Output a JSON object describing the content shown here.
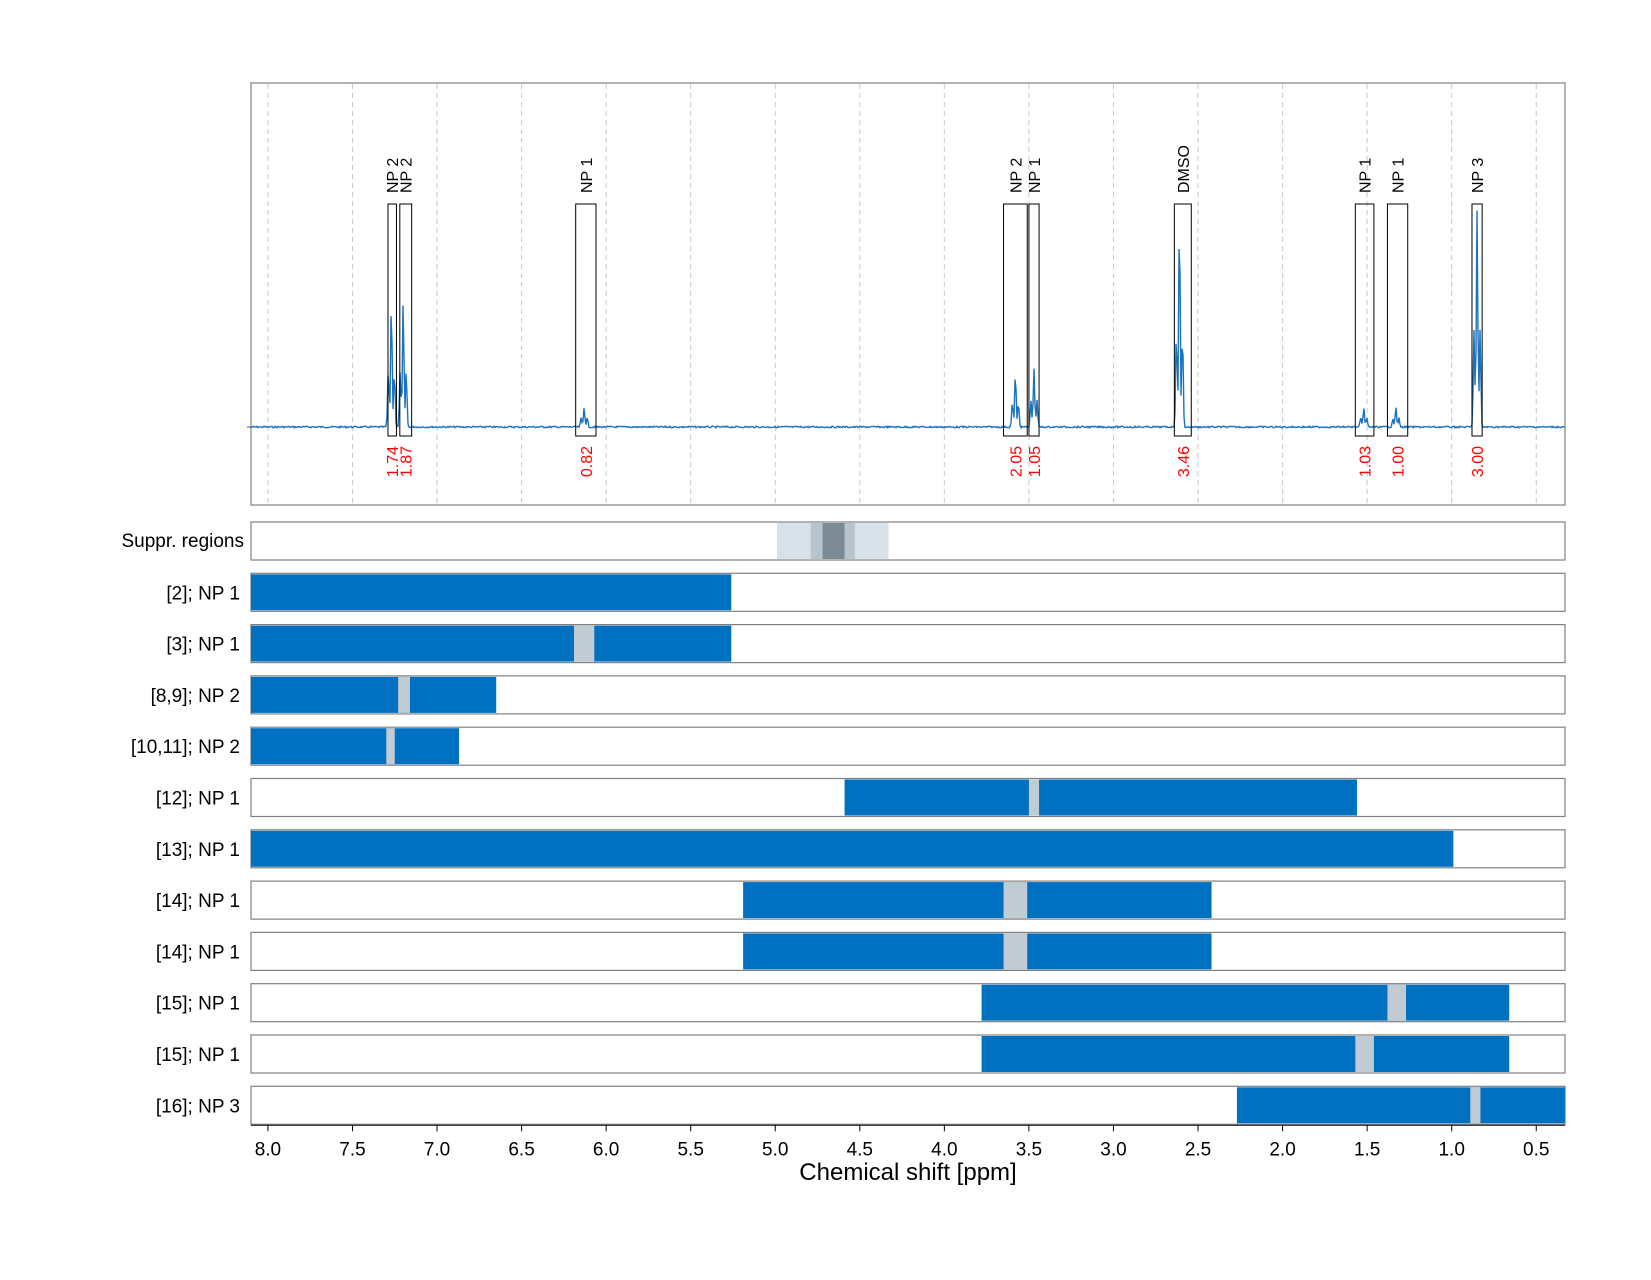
{
  "chart_data": {
    "type": "line",
    "xlabel": "Chemical shift [ppm]",
    "xlim": [
      8.1,
      0.33
    ],
    "x_reversed": true,
    "x_ticks": [
      "8.0",
      "7.5",
      "7.0",
      "6.5",
      "6.0",
      "5.5",
      "5.0",
      "4.5",
      "4.0",
      "3.5",
      "3.0",
      "2.5",
      "2.0",
      "1.5",
      "1.0",
      "0.5"
    ],
    "grid": "vertical dashed",
    "spectrum": {
      "color": "#1a73c0",
      "peaks": [
        {
          "center": 7.27,
          "height": 0.58
        },
        {
          "center": 7.2,
          "height": 0.58
        },
        {
          "center": 6.13,
          "height": 0.09
        },
        {
          "center": 3.58,
          "height": 0.25
        },
        {
          "center": 3.47,
          "height": 0.27
        },
        {
          "center": 2.61,
          "height": 0.98
        },
        {
          "center": 1.52,
          "height": 0.09
        },
        {
          "center": 1.33,
          "height": 0.09
        },
        {
          "center": 0.85,
          "height": 1.0
        }
      ]
    },
    "annotations": [
      {
        "label": "NP 2",
        "integral": "1.74",
        "from": 7.29,
        "to": 7.24
      },
      {
        "label": "NP 2",
        "integral": "1.87",
        "from": 7.22,
        "to": 7.15
      },
      {
        "label": "NP 1",
        "integral": "0.82",
        "from": 6.18,
        "to": 6.06
      },
      {
        "label": "NP 2",
        "integral": "2.05",
        "from": 3.65,
        "to": 3.51
      },
      {
        "label": "NP 1",
        "integral": "1.05",
        "from": 3.5,
        "to": 3.44
      },
      {
        "label": "DMSO",
        "integral": "3.46",
        "from": 2.64,
        "to": 2.54
      },
      {
        "label": "NP 1",
        "integral": "1.03",
        "from": 1.57,
        "to": 1.46
      },
      {
        "label": "NP 1",
        "integral": "1.00",
        "from": 1.38,
        "to": 1.26
      },
      {
        "label": "NP 3",
        "integral": "3.00",
        "from": 0.88,
        "to": 0.82
      }
    ],
    "suppression_row": {
      "label": "Suppr. regions",
      "bands": [
        {
          "from": 4.99,
          "to": 4.33,
          "shade": "#d8e0e8"
        },
        {
          "from": 4.79,
          "to": 4.53,
          "shade": "#b8c4cc"
        },
        {
          "from": 4.72,
          "to": 4.59,
          "shade": "#7a8b96"
        }
      ]
    },
    "range_rows": [
      {
        "label": "[2]; NP 1",
        "from": 8.1,
        "to": 5.26,
        "gap": null
      },
      {
        "label": "[3]; NP 1",
        "from": 8.1,
        "to": 5.26,
        "gap": [
          6.19,
          6.07
        ]
      },
      {
        "label": "[8,9]; NP 2",
        "from": 8.1,
        "to": 6.65,
        "gap": [
          7.23,
          7.16
        ]
      },
      {
        "label": "[10,11]; NP 2",
        "from": 8.1,
        "to": 6.87,
        "gap": [
          7.3,
          7.25
        ]
      },
      {
        "label": "[12]; NP 1",
        "from": 4.59,
        "to": 1.56,
        "gap": [
          3.5,
          3.44
        ]
      },
      {
        "label": "[13]; NP 1",
        "from": 8.1,
        "to": 0.99,
        "gap": null
      },
      {
        "label": "[14]; NP 1",
        "from": 5.19,
        "to": 2.42,
        "gap": [
          3.65,
          3.51
        ]
      },
      {
        "label": "[14]; NP 1",
        "from": 5.19,
        "to": 2.42,
        "gap": [
          3.65,
          3.51
        ]
      },
      {
        "label": "[15]; NP 1",
        "from": 3.78,
        "to": 0.66,
        "gap": [
          1.38,
          1.27
        ]
      },
      {
        "label": "[15]; NP 1",
        "from": 3.78,
        "to": 0.66,
        "gap": [
          1.57,
          1.46
        ]
      },
      {
        "label": "[16]; NP 3",
        "from": 2.27,
        "to": 0.33,
        "gap": [
          0.89,
          0.83
        ]
      }
    ],
    "colors": {
      "range_fill": "#0070c0",
      "gap_fill": "#c0ccd2",
      "integral_text": "#ff0000",
      "frame": "#808080",
      "grid": "#c8c8c8"
    }
  }
}
